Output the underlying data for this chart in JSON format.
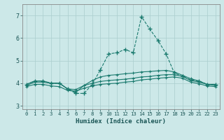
{
  "xlabel": "Humidex (Indice chaleur)",
  "bg_color": "#cce8e8",
  "line_color": "#1a7a6e",
  "grid_color": "#aacece",
  "xlim": [
    -0.5,
    23.5
  ],
  "ylim": [
    2.85,
    7.5
  ],
  "xticks": [
    0,
    1,
    2,
    3,
    4,
    5,
    6,
    7,
    8,
    9,
    10,
    11,
    12,
    13,
    14,
    15,
    16,
    17,
    18,
    19,
    20,
    21,
    22,
    23
  ],
  "yticks": [
    3,
    4,
    5,
    6,
    7
  ],
  "x": [
    0,
    1,
    2,
    3,
    4,
    5,
    6,
    7,
    8,
    9,
    10,
    11,
    12,
    13,
    14,
    15,
    16,
    17,
    18,
    19,
    20,
    21,
    22,
    23
  ],
  "line1": [
    3.95,
    4.1,
    4.1,
    4.0,
    4.0,
    3.75,
    3.55,
    3.55,
    3.95,
    4.6,
    5.3,
    5.35,
    5.5,
    5.35,
    6.95,
    6.4,
    5.9,
    5.3,
    4.45,
    4.3,
    4.15,
    4.1,
    3.95,
    3.95
  ],
  "line2": [
    3.95,
    4.1,
    4.1,
    4.0,
    4.0,
    3.75,
    3.6,
    3.9,
    4.12,
    4.28,
    4.35,
    4.38,
    4.42,
    4.45,
    4.5,
    4.52,
    4.55,
    4.57,
    4.5,
    4.35,
    4.2,
    4.1,
    3.95,
    3.95
  ],
  "line3": [
    3.9,
    4.05,
    4.05,
    4.0,
    4.0,
    3.75,
    3.72,
    3.9,
    4.0,
    4.08,
    4.12,
    4.15,
    4.18,
    4.22,
    4.28,
    4.3,
    4.35,
    4.38,
    4.38,
    4.3,
    4.12,
    4.05,
    3.95,
    3.9
  ],
  "line4": [
    3.85,
    3.95,
    3.95,
    3.88,
    3.85,
    3.68,
    3.65,
    3.78,
    3.88,
    3.95,
    3.98,
    4.0,
    4.05,
    4.08,
    4.15,
    4.18,
    4.22,
    4.25,
    4.28,
    4.22,
    4.05,
    3.98,
    3.88,
    3.85
  ]
}
